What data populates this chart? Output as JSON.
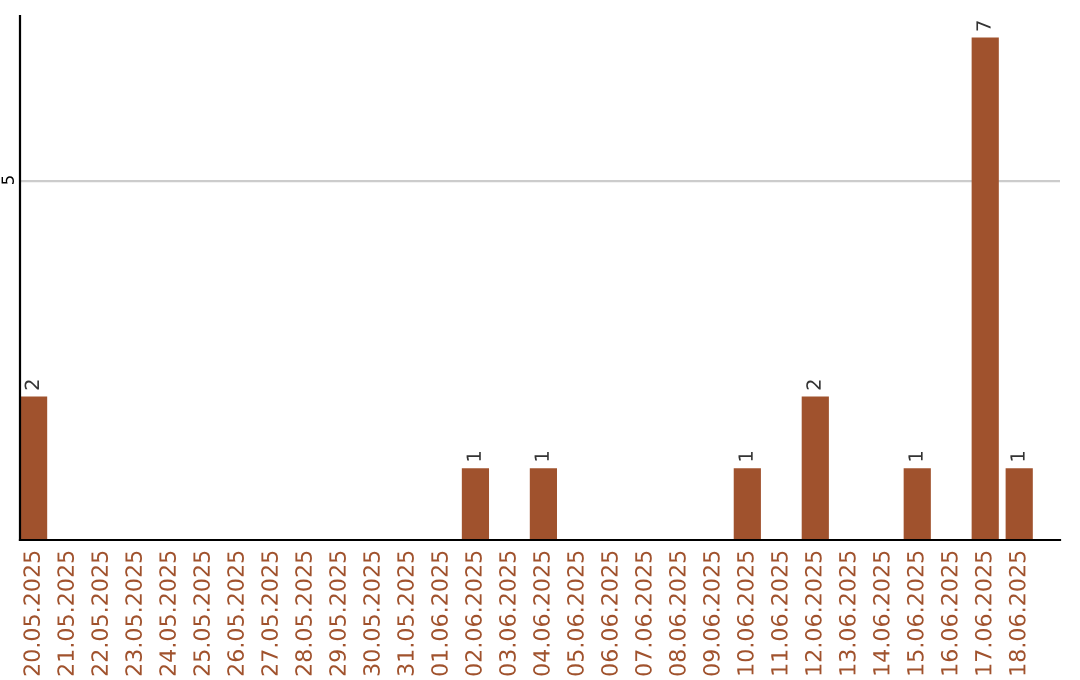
{
  "chart_data": {
    "type": "bar",
    "categories": [
      "20.05.2025",
      "21.05.2025",
      "22.05.2025",
      "23.05.2025",
      "24.05.2025",
      "25.05.2025",
      "26.05.2025",
      "27.05.2025",
      "28.05.2025",
      "29.05.2025",
      "30.05.2025",
      "31.05.2025",
      "01.06.2025",
      "02.06.2025",
      "03.06.2025",
      "04.06.2025",
      "05.06.2025",
      "06.06.2025",
      "07.06.2025",
      "08.06.2025",
      "09.06.2025",
      "10.06.2025",
      "11.06.2025",
      "12.06.2025",
      "13.06.2025",
      "14.06.2025",
      "15.06.2025",
      "16.06.2025",
      "17.06.2025",
      "18.06.2025"
    ],
    "values": [
      2,
      0,
      0,
      0,
      0,
      0,
      0,
      0,
      0,
      0,
      0,
      0,
      0,
      1,
      0,
      1,
      0,
      0,
      0,
      0,
      0,
      1,
      0,
      2,
      0,
      0,
      1,
      0,
      7,
      1
    ],
    "value_labels": [
      "2",
      null,
      null,
      null,
      null,
      null,
      null,
      null,
      null,
      null,
      null,
      null,
      null,
      "1",
      null,
      "1",
      null,
      null,
      null,
      null,
      null,
      "1",
      null,
      "2",
      null,
      null,
      "1",
      null,
      "7",
      "1"
    ],
    "color": "#a0522d",
    "ylim": [
      0,
      7.3
    ],
    "yticks": [
      5
    ],
    "grid": "y"
  }
}
